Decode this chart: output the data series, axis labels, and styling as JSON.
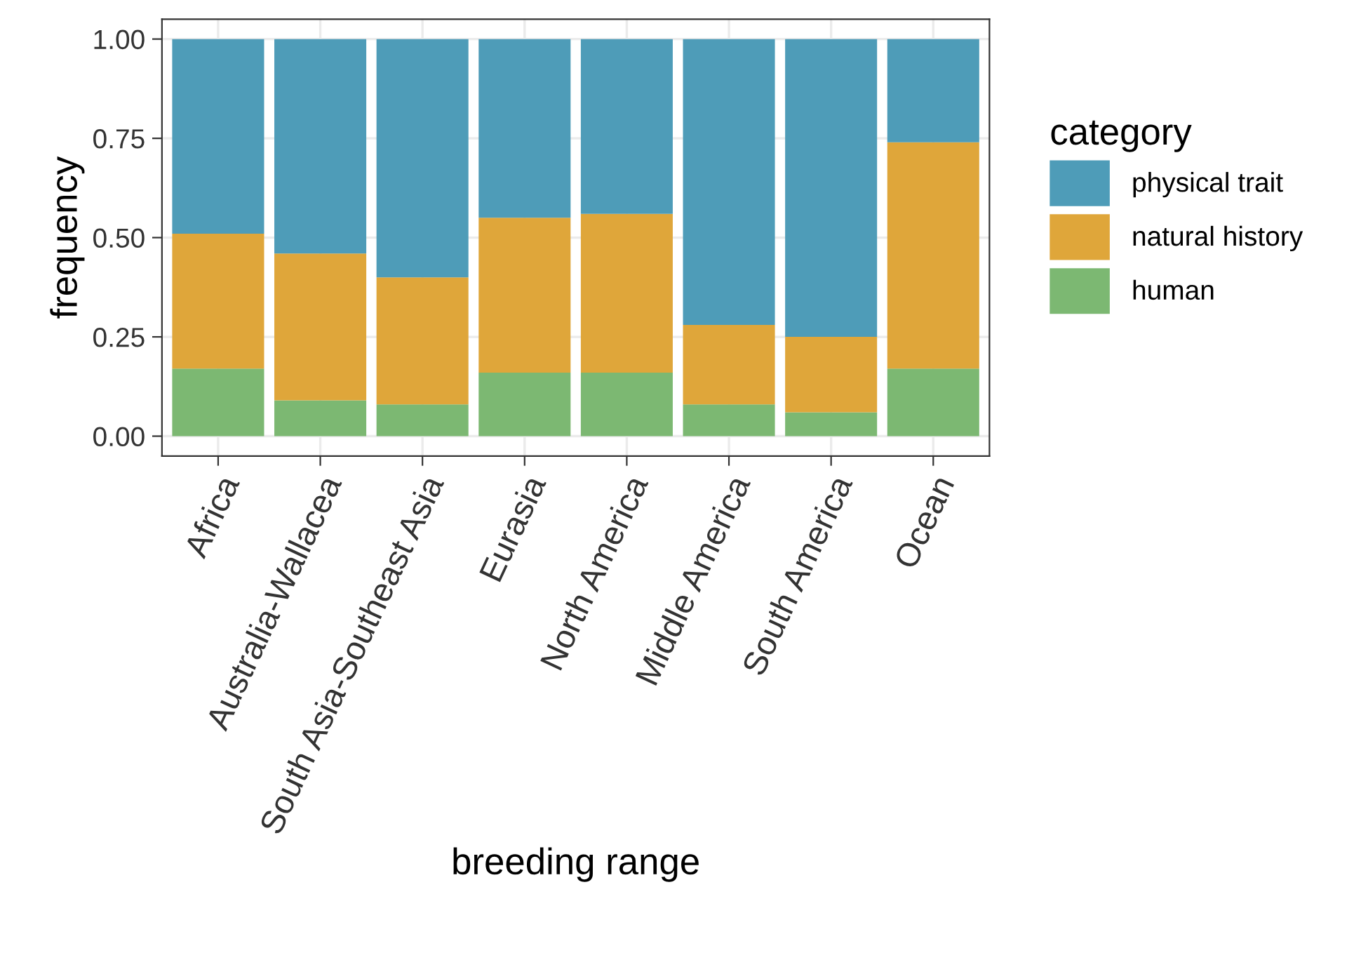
{
  "chart_data": {
    "type": "bar",
    "stacked": true,
    "xlabel": "breeding range",
    "ylabel": "frequency",
    "legend_title": "category",
    "legend": "right",
    "categories": [
      "Africa",
      "Australia-Wallacea",
      "South Asia-Southeast Asia",
      "Eurasia",
      "North America",
      "Middle America",
      "South America",
      "Ocean"
    ],
    "series": [
      {
        "name": "human",
        "color": "#7cb872",
        "values": [
          0.17,
          0.09,
          0.08,
          0.16,
          0.16,
          0.08,
          0.06,
          0.17
        ]
      },
      {
        "name": "natural history",
        "color": "#dfa63a",
        "values": [
          0.34,
          0.37,
          0.32,
          0.39,
          0.4,
          0.2,
          0.19,
          0.57
        ]
      },
      {
        "name": "physical trait",
        "color": "#4e9cb8",
        "values": [
          0.49,
          0.54,
          0.6,
          0.45,
          0.44,
          0.72,
          0.75,
          0.26
        ]
      }
    ],
    "ylim": [
      -0.05,
      1.05
    ],
    "yticks": [
      {
        "value": 0,
        "label": "0.00"
      },
      {
        "value": 0.25,
        "label": "0.25"
      },
      {
        "value": 0.5,
        "label": "0.50"
      },
      {
        "value": 0.75,
        "label": "0.75"
      },
      {
        "value": 1,
        "label": "1.00"
      }
    ],
    "grid": true
  }
}
